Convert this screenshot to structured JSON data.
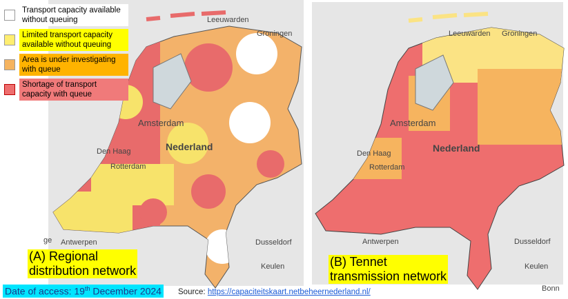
{
  "legend": [
    "Transport capacity available without queuing",
    "Limited transport capacity available without queuing",
    "Area is under investigating with queue",
    "Shortage of transport capacity with queue"
  ],
  "map_a": {
    "places": [
      "Leeuwarden",
      "Groningen",
      "Amsterdam",
      "Nederland",
      "Den Haag",
      "Rotterdam",
      "Antwerpen",
      "Dusseldorf",
      "Keulen",
      "ge"
    ],
    "caption": [
      "(A) Regional",
      "distribution network"
    ]
  },
  "map_b": {
    "places": [
      "Leeuwarden",
      "Groningen",
      "Amsterdam",
      "Nederland",
      "Den Haag",
      "Rotterdam",
      "Antwerpen",
      "Dusseldorf",
      "Keulen",
      "Bonn"
    ],
    "caption": [
      "(B) Tennet",
      "transmission network"
    ]
  },
  "date": [
    "Date of access: 19",
    "th",
    " December 2024"
  ],
  "source": {
    "label": "Source: ",
    "url": "https://capaciteitskaart.netbeheernederland.nl/"
  }
}
